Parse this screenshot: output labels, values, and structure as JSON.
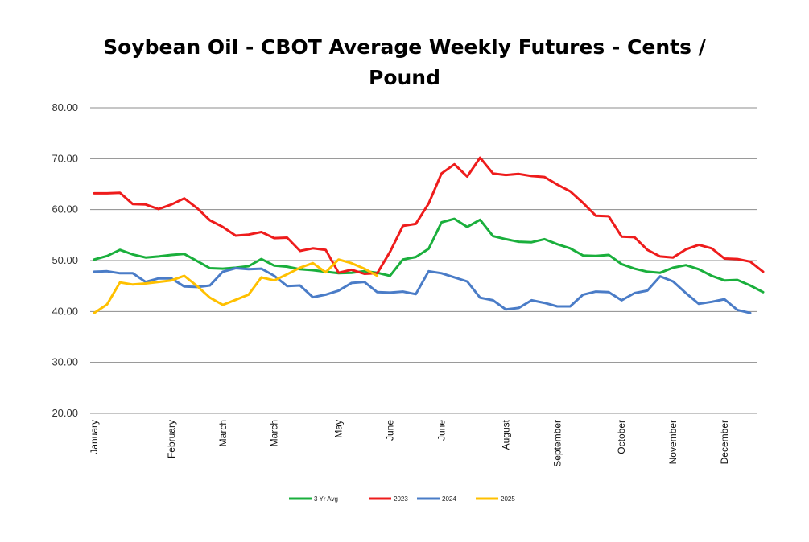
{
  "chart_data": {
    "type": "line",
    "title_lines": [
      "Soybean Oil - CBOT Average Weekly Futures - Cents /",
      "Pound"
    ],
    "xlabel": "",
    "ylabel": "",
    "ylim": [
      20,
      80
    ],
    "yticks": [
      "20.00",
      "30.00",
      "40.00",
      "50.00",
      "60.00",
      "70.00",
      "80.00"
    ],
    "x_week_count": 52,
    "x_tick_labels": [
      {
        "week": 1,
        "label": "January"
      },
      {
        "week": 7,
        "label": "February"
      },
      {
        "week": 11,
        "label": "March"
      },
      {
        "week": 15,
        "label": "March"
      },
      {
        "week": 20,
        "label": "May"
      },
      {
        "week": 24,
        "label": "June"
      },
      {
        "week": 28,
        "label": "June"
      },
      {
        "week": 33,
        "label": "August"
      },
      {
        "week": 37,
        "label": "September"
      },
      {
        "week": 42,
        "label": "October"
      },
      {
        "week": 46,
        "label": "November"
      },
      {
        "week": 50,
        "label": "December"
      }
    ],
    "grid": true,
    "legend_position": "bottom",
    "series": [
      {
        "name": "3 Yr Avg",
        "color": "#1aaf3c",
        "values": [
          50.2,
          50.9,
          52.1,
          51.2,
          50.6,
          50.8,
          51.1,
          51.3,
          49.9,
          48.5,
          48.4,
          48.6,
          48.9,
          50.3,
          49.0,
          48.8,
          48.3,
          48.1,
          47.8,
          47.5,
          47.6,
          47.9,
          47.6,
          47.0,
          50.2,
          50.7,
          52.3,
          57.5,
          58.2,
          56.6,
          58.0,
          54.8,
          54.2,
          53.7,
          53.6,
          54.2,
          53.2,
          52.4,
          51.0,
          50.9,
          51.1,
          49.3,
          48.4,
          47.8,
          47.6,
          48.6,
          49.1,
          48.3,
          47.0,
          46.1,
          46.2,
          45.1,
          43.8
        ]
      },
      {
        "name": "2023",
        "color": "#ee1c1c",
        "values": [
          63.2,
          63.2,
          63.3,
          61.1,
          61.0,
          60.1,
          61.0,
          62.2,
          60.3,
          57.9,
          56.6,
          54.9,
          55.1,
          55.6,
          54.4,
          54.5,
          51.9,
          52.4,
          52.1,
          47.6,
          48.2,
          47.4,
          47.5,
          51.7,
          56.8,
          57.2,
          61.2,
          67.1,
          68.9,
          66.5,
          70.2,
          67.1,
          66.8,
          67.0,
          66.6,
          66.4,
          64.9,
          63.6,
          61.3,
          58.8,
          58.7,
          54.7,
          54.6,
          52.1,
          50.8,
          50.6,
          52.2,
          53.1,
          52.4,
          50.4,
          50.3,
          49.8,
          47.8
        ]
      },
      {
        "name": "2024",
        "color": "#4a7cc7",
        "values": [
          47.8,
          47.9,
          47.5,
          47.5,
          45.8,
          46.5,
          46.5,
          44.9,
          44.8,
          45.1,
          47.8,
          48.5,
          48.3,
          48.4,
          47.0,
          45.0,
          45.1,
          42.8,
          43.3,
          44.1,
          45.6,
          45.8,
          43.8,
          43.7,
          43.9,
          43.4,
          47.9,
          47.5,
          46.7,
          45.9,
          42.7,
          42.2,
          40.4,
          40.7,
          42.2,
          41.7,
          41.0,
          41.0,
          43.3,
          43.9,
          43.8,
          42.2,
          43.6,
          44.1,
          46.9,
          45.9,
          43.6,
          41.5,
          41.9,
          42.4,
          40.3,
          39.7
        ]
      },
      {
        "name": "2025",
        "color": "#ffc000",
        "values": [
          39.7,
          41.4,
          45.7,
          45.3,
          45.5,
          45.8,
          46.1,
          47.0,
          45.0,
          42.7,
          41.3,
          42.3,
          43.3,
          46.7,
          46.1,
          47.3,
          48.6,
          49.5,
          47.7,
          50.2,
          49.5,
          48.4,
          47.0
        ]
      }
    ]
  }
}
